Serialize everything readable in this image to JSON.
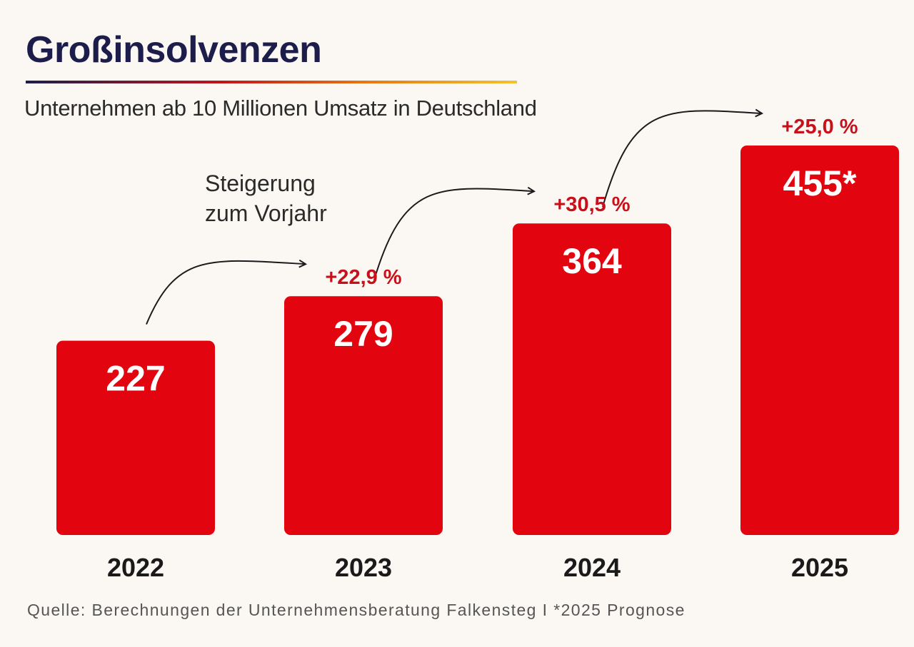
{
  "header": {
    "title": "Großinsolvenzen",
    "subtitle": "Unternehmen ab 10 Millionen Umsatz in Deutschland"
  },
  "annotation": {
    "line1": "Steigerung",
    "line2": "zum Vorjahr"
  },
  "footer": {
    "source": "Quelle: Berechnungen der Unternehmensberatung Falkensteg I *2025 Prognose"
  },
  "colors": {
    "bar": "#e2050f",
    "title": "#1c1d4a",
    "pct": "#c8101a",
    "value": "#ffffff",
    "year": "#1a1a1a"
  },
  "chart_data": {
    "type": "bar",
    "title": "Großinsolvenzen",
    "subtitle": "Unternehmen ab 10 Millionen Umsatz in Deutschland",
    "xlabel": "",
    "ylabel": "",
    "categories": [
      "2022",
      "2023",
      "2024",
      "2025"
    ],
    "values": [
      227,
      279,
      364,
      455
    ],
    "value_labels": [
      "227",
      "279",
      "364",
      "455*"
    ],
    "change_labels": [
      "",
      "+22,9 %",
      "+30,5 %",
      "+25,0 %"
    ],
    "ylim": [
      0,
      455
    ],
    "grid": false,
    "legend": "none"
  }
}
